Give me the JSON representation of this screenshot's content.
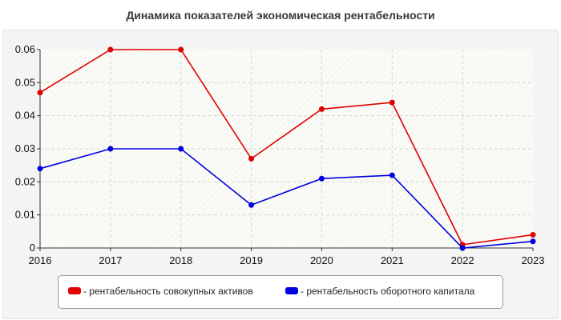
{
  "chart_data": {
    "type": "line",
    "title": "Динамика показателей экономическая рентабельности",
    "xlabel": "",
    "ylabel": "",
    "categories": [
      "2016",
      "2017",
      "2018",
      "2019",
      "2020",
      "2021",
      "2022",
      "2023"
    ],
    "ylim": [
      0,
      0.06
    ],
    "yticks": [
      "0",
      "0.01",
      "0.02",
      "0.03",
      "0.04",
      "0.05",
      "0.06"
    ],
    "grid": true,
    "legend_position": "bottom",
    "series": [
      {
        "name": "- рентабельность совокупных активов",
        "color": "#e00000",
        "values": [
          0.047,
          0.06,
          0.06,
          0.027,
          0.042,
          0.044,
          0.001,
          0.004
        ]
      },
      {
        "name": "- рентабельность оборотного капитала",
        "color": "#0000e0",
        "values": [
          0.024,
          0.03,
          0.03,
          0.013,
          0.021,
          0.022,
          0.0,
          0.002
        ]
      }
    ]
  }
}
